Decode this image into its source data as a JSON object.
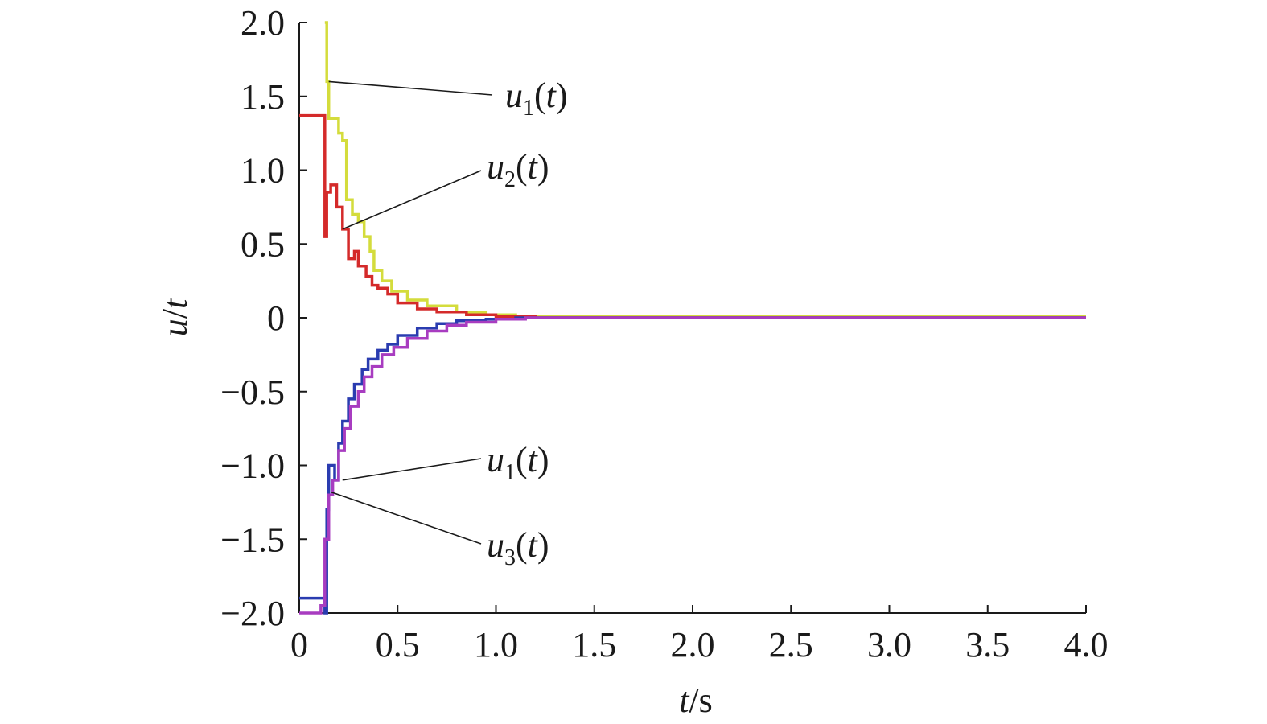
{
  "chart_data": {
    "type": "line",
    "title": "",
    "xlabel": {
      "var": "t",
      "unit": "/s"
    },
    "ylabel": {
      "var": "u",
      "sep": "/",
      "var2": "t"
    },
    "xlim": [
      0,
      4.0
    ],
    "ylim": [
      -2.0,
      2.0
    ],
    "x_ticks": [
      "0",
      "0.5",
      "1.0",
      "1.5",
      "2.0",
      "2.5",
      "3.0",
      "3.5",
      "4.0"
    ],
    "y_ticks": [
      "2.0",
      "1.5",
      "1.0",
      "0.5",
      "0",
      "−0.5",
      "−1.0",
      "−1.5",
      "−2.0"
    ],
    "grid": false,
    "series": [
      {
        "color": "#d4dc3c",
        "x": [
          0.13,
          0.13,
          0.14,
          0.15,
          0.16,
          0.2,
          0.22,
          0.24,
          0.27,
          0.3,
          0.33,
          0.36,
          0.38,
          0.42,
          0.47,
          0.55,
          0.65,
          0.8,
          0.95,
          1.1,
          1.5,
          4.0
        ],
        "y": [
          2.0,
          2.0,
          1.6,
          1.35,
          1.35,
          1.25,
          1.2,
          0.8,
          0.7,
          0.65,
          0.55,
          0.45,
          0.32,
          0.25,
          0.18,
          0.12,
          0.08,
          0.04,
          0.02,
          0.01,
          0.01,
          0.01
        ]
      },
      {
        "color": "#d42a2a",
        "x": [
          0.0,
          0.12,
          0.13,
          0.14,
          0.16,
          0.19,
          0.22,
          0.25,
          0.28,
          0.3,
          0.34,
          0.37,
          0.4,
          0.45,
          0.5,
          0.6,
          0.7,
          0.85,
          1.0,
          1.2,
          4.0
        ],
        "y": [
          1.37,
          1.37,
          0.55,
          0.85,
          0.9,
          0.75,
          0.6,
          0.4,
          0.45,
          0.35,
          0.28,
          0.22,
          0.2,
          0.16,
          0.1,
          0.06,
          0.04,
          0.02,
          0.01,
          0.0,
          0.0
        ]
      },
      {
        "color": "#2a3cb0",
        "x": [
          0.0,
          0.12,
          0.13,
          0.14,
          0.15,
          0.16,
          0.18,
          0.2,
          0.22,
          0.25,
          0.28,
          0.32,
          0.35,
          0.4,
          0.45,
          0.5,
          0.6,
          0.7,
          0.8,
          0.95,
          1.1,
          4.0
        ],
        "y": [
          -1.9,
          -1.9,
          -2.0,
          -1.3,
          -1.0,
          -1.0,
          -1.1,
          -0.85,
          -0.7,
          -0.55,
          -0.45,
          -0.35,
          -0.28,
          -0.22,
          -0.18,
          -0.12,
          -0.07,
          -0.04,
          -0.02,
          -0.01,
          0.0,
          0.0
        ]
      },
      {
        "color": "#a83cc0",
        "x": [
          0.0,
          0.1,
          0.11,
          0.13,
          0.15,
          0.17,
          0.2,
          0.23,
          0.26,
          0.3,
          0.33,
          0.37,
          0.42,
          0.48,
          0.55,
          0.65,
          0.75,
          0.85,
          1.0,
          1.15,
          4.0
        ],
        "y": [
          -2.0,
          -2.0,
          -1.95,
          -1.5,
          -1.2,
          -1.1,
          -0.9,
          -0.75,
          -0.6,
          -0.5,
          -0.4,
          -0.33,
          -0.25,
          -0.2,
          -0.14,
          -0.09,
          -0.05,
          -0.03,
          -0.01,
          0.0,
          0.0
        ]
      }
    ],
    "annotations": [
      {
        "var": "u",
        "sub": "1",
        "arg": "(t)",
        "point": [
          0.15,
          1.6
        ]
      },
      {
        "var": "u",
        "sub": "2",
        "arg": "(t)",
        "point": [
          0.22,
          0.6
        ]
      },
      {
        "var": "u",
        "sub": "1",
        "arg": "(t)",
        "point": [
          0.22,
          -1.1
        ]
      },
      {
        "var": "u",
        "sub": "3",
        "arg": "(t)",
        "point": [
          0.16,
          -1.18
        ]
      }
    ]
  }
}
